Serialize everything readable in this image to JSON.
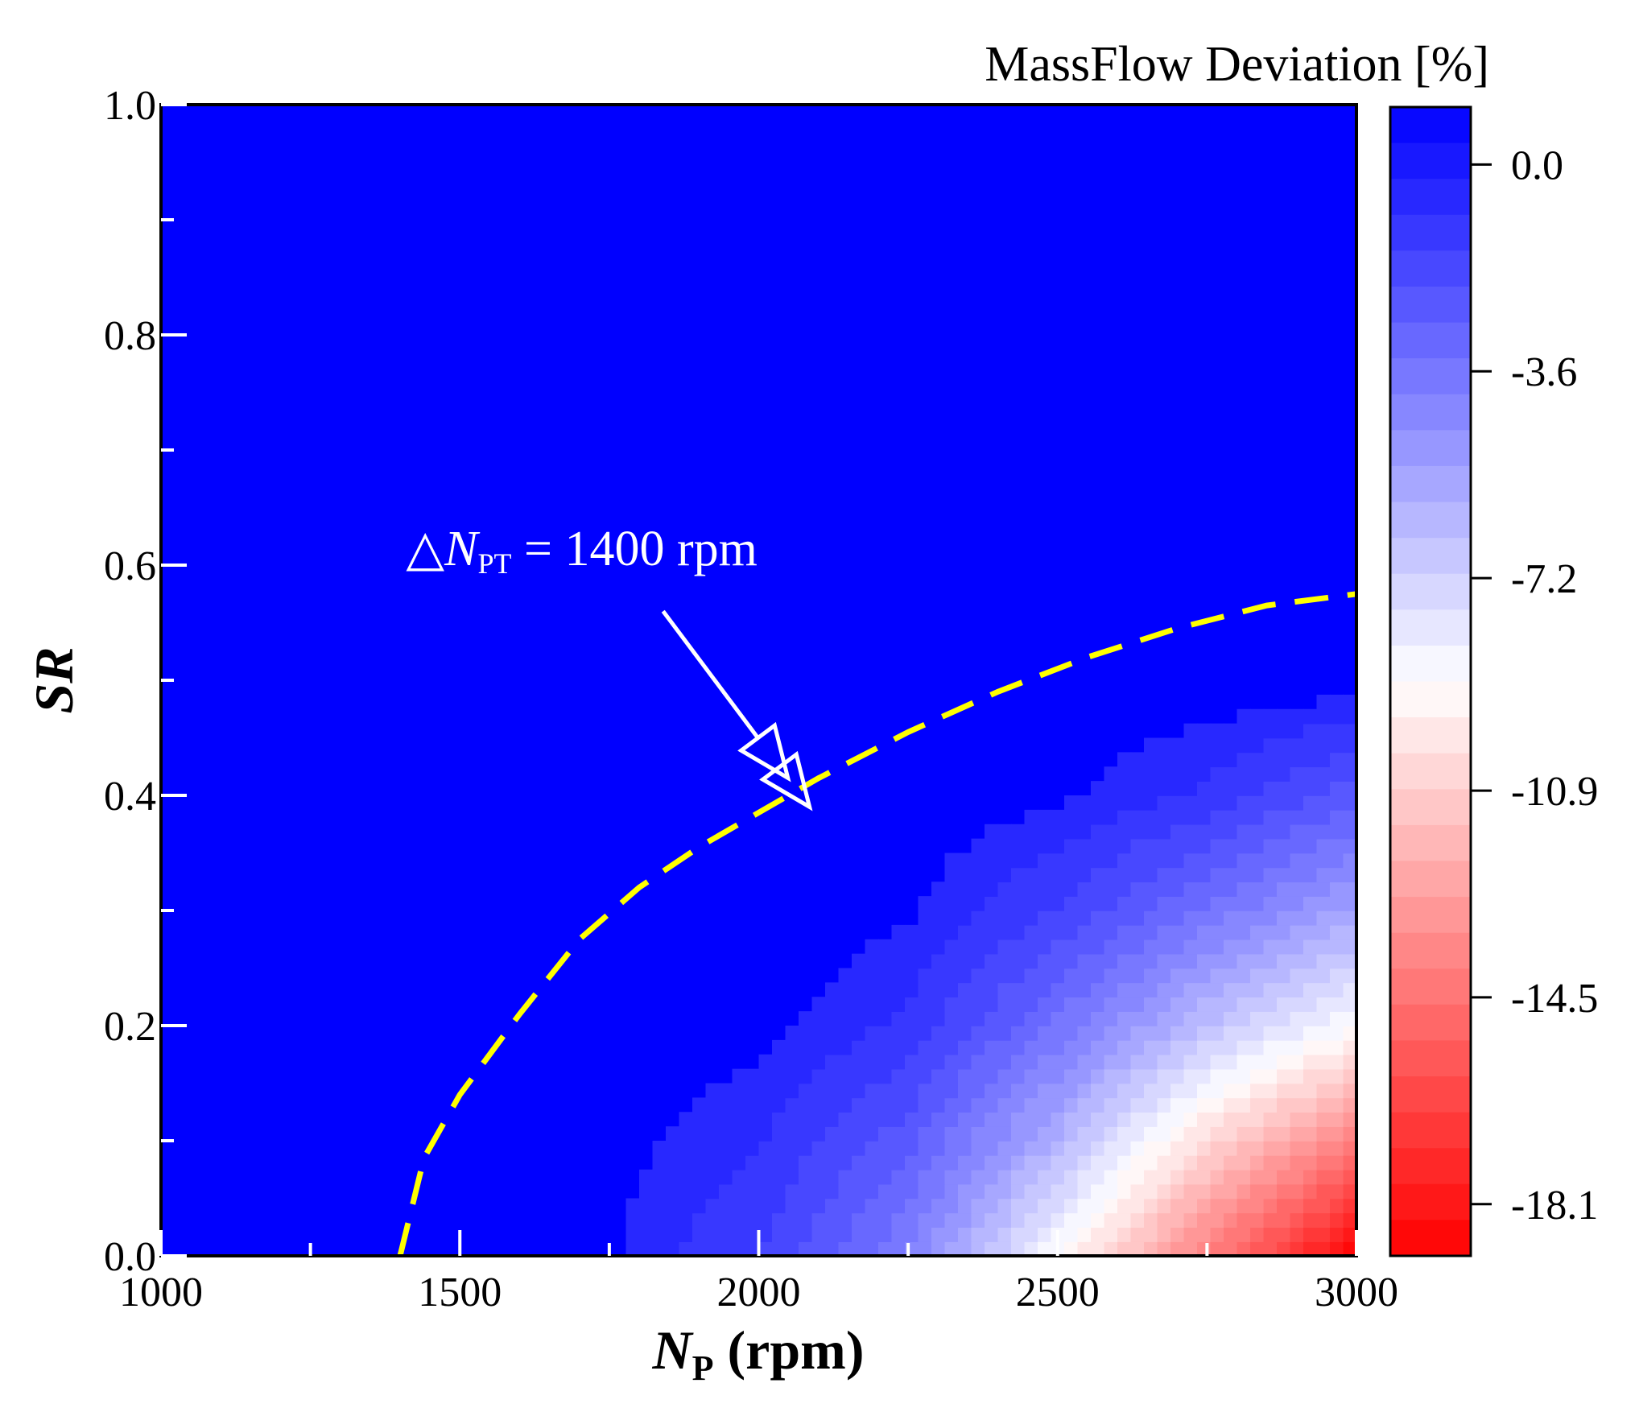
{
  "chart_data": {
    "type": "heatmap",
    "xlabel": {
      "main": "N",
      "sub": "P",
      "rest": " (rpm)"
    },
    "ylabel": "SR",
    "xlim": [
      1000,
      3000
    ],
    "ylim": [
      0.0,
      1.0
    ],
    "x_ticks": [
      1000,
      1500,
      2000,
      2500,
      3000
    ],
    "x_tick_labels": [
      "1000",
      "1500",
      "2000",
      "2500",
      "3000"
    ],
    "x_minor_ticks": [
      1250,
      1750,
      2250,
      2750
    ],
    "y_ticks": [
      0.0,
      0.2,
      0.4,
      0.6,
      0.8,
      1.0
    ],
    "y_tick_labels": [
      "0.0",
      "0.2",
      "0.4",
      "0.6",
      "0.8",
      "1.0"
    ],
    "y_minor_ticks": [
      0.1,
      0.3,
      0.5,
      0.7,
      0.9
    ],
    "colorbar": {
      "title": "MassFlow Deviation [%]",
      "min": -19.0,
      "max": 1.0,
      "ticks": [
        0.0,
        -3.6,
        -7.2,
        -10.9,
        -14.5,
        -18.1
      ],
      "tick_labels": [
        "0.0",
        "-3.6",
        "-7.2",
        "-10.9",
        "-14.5",
        "-18.1"
      ],
      "levels": 32,
      "colors": {
        "high": "#0000ff",
        "mid": "#ffffff",
        "low": "#ff0000"
      }
    },
    "grid_x": [
      1000,
      1250,
      1500,
      1750,
      2000,
      2250,
      2500,
      2750,
      3000
    ],
    "grid_y": [
      0.0,
      0.1,
      0.2,
      0.3,
      0.4,
      0.5,
      0.6,
      0.7,
      0.8,
      0.9,
      1.0
    ],
    "z": [
      [
        0.0,
        0.0,
        0.0,
        -0.3,
        -1.5,
        -4.0,
        -9.0,
        -14.0,
        -19.0
      ],
      [
        0.0,
        0.0,
        0.0,
        -0.2,
        -0.8,
        -2.5,
        -6.0,
        -10.5,
        -14.0
      ],
      [
        0.0,
        0.0,
        0.0,
        0.0,
        -0.2,
        -1.0,
        -3.5,
        -6.5,
        -9.0
      ],
      [
        0.0,
        0.0,
        0.0,
        0.0,
        0.0,
        -0.3,
        -1.5,
        -3.5,
        -5.5
      ],
      [
        0.0,
        0.0,
        0.3,
        0.0,
        0.0,
        0.0,
        -0.3,
        -1.0,
        -2.5
      ],
      [
        0.0,
        0.0,
        0.0,
        0.0,
        0.0,
        0.0,
        0.0,
        0.0,
        0.0
      ],
      [
        0.0,
        0.0,
        0.0,
        0.0,
        0.0,
        0.0,
        0.0,
        0.0,
        0.0
      ],
      [
        0.0,
        0.0,
        0.0,
        0.0,
        0.0,
        0.0,
        0.0,
        0.0,
        0.0
      ],
      [
        0.0,
        0.0,
        0.0,
        0.0,
        0.0,
        0.0,
        0.0,
        0.0,
        0.0
      ],
      [
        0.0,
        0.0,
        0.0,
        0.0,
        0.0,
        0.0,
        0.0,
        0.0,
        0.0
      ],
      [
        0.0,
        0.0,
        0.0,
        0.0,
        0.0,
        0.0,
        0.0,
        0.0,
        0.0
      ]
    ],
    "contour_line": {
      "style": "dashed",
      "color": "#ffff00",
      "points": [
        [
          1400,
          0.0
        ],
        [
          1440,
          0.085
        ],
        [
          1500,
          0.14
        ],
        [
          1600,
          0.21
        ],
        [
          1700,
          0.275
        ],
        [
          1800,
          0.32
        ],
        [
          1900,
          0.355
        ],
        [
          2000,
          0.385
        ],
        [
          2100,
          0.415
        ],
        [
          2250,
          0.455
        ],
        [
          2400,
          0.49
        ],
        [
          2550,
          0.52
        ],
        [
          2700,
          0.545
        ],
        [
          2850,
          0.565
        ],
        [
          3000,
          0.575
        ]
      ]
    },
    "annotation": {
      "text_prefix": "△",
      "text_var": "N",
      "text_sub": "PT",
      "text_rest": " = 1400 rpm",
      "text_at": [
        1410,
        0.6
      ],
      "arrow_from": [
        1840,
        0.56
      ],
      "arrow_to": [
        2085,
        0.39
      ],
      "color": "#ffffff"
    }
  }
}
